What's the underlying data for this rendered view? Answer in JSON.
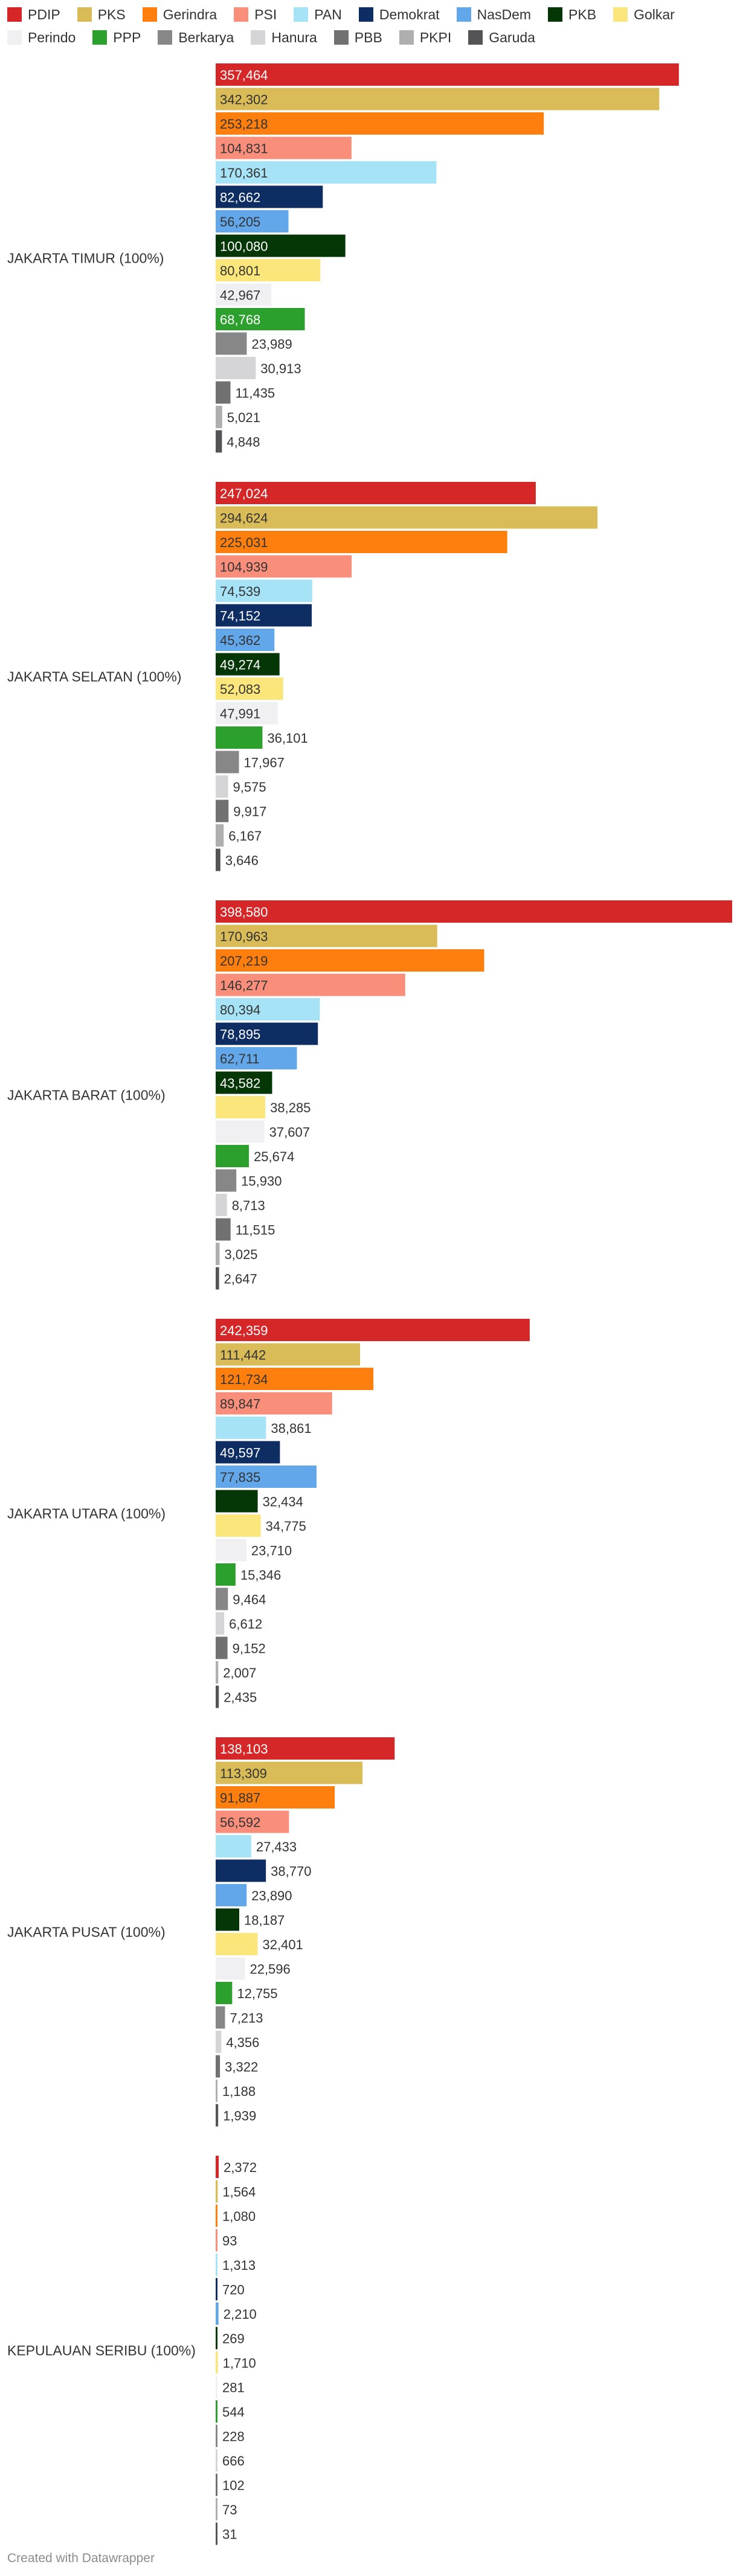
{
  "chart_data": {
    "type": "bar",
    "orientation": "horizontal",
    "legend_position": "top-left",
    "grid": false,
    "series": [
      {
        "name": "PDIP",
        "color": "#d62728"
      },
      {
        "name": "PKS",
        "color": "#d9bc58"
      },
      {
        "name": "Gerindra",
        "color": "#ff7f0e"
      },
      {
        "name": "PSI",
        "color": "#f98f7b"
      },
      {
        "name": "PAN",
        "color": "#a6e3f7"
      },
      {
        "name": "Demokrat",
        "color": "#0d2d63"
      },
      {
        "name": "NasDem",
        "color": "#63a7eb"
      },
      {
        "name": "PKB",
        "color": "#053605"
      },
      {
        "name": "Golkar",
        "color": "#fbe67c"
      },
      {
        "name": "Perindo",
        "color": "#f0f0f3"
      },
      {
        "name": "PPP",
        "color": "#2ca02c"
      },
      {
        "name": "Berkarya",
        "color": "#878787"
      },
      {
        "name": "Hanura",
        "color": "#d5d5d8"
      },
      {
        "name": "PBB",
        "color": "#717171"
      },
      {
        "name": "PKPI",
        "color": "#afafaf"
      },
      {
        "name": "Garuda",
        "color": "#545457"
      }
    ],
    "regions": [
      {
        "label": "JAKARTA TIMUR (100%)",
        "values": [
          357464,
          342302,
          253218,
          104831,
          170361,
          82662,
          56205,
          100080,
          80801,
          42967,
          68768,
          23989,
          30913,
          11435,
          5021,
          4848
        ]
      },
      {
        "label": "JAKARTA SELATAN (100%)",
        "values": [
          247024,
          294624,
          225031,
          104939,
          74539,
          74152,
          45362,
          49274,
          52083,
          47991,
          36101,
          17967,
          9575,
          9917,
          6167,
          3646
        ]
      },
      {
        "label": "JAKARTA BARAT (100%)",
        "values": [
          398580,
          170963,
          207219,
          146277,
          80394,
          78895,
          62711,
          43582,
          38285,
          37607,
          25674,
          15930,
          8713,
          11515,
          3025,
          2647
        ]
      },
      {
        "label": "JAKARTA UTARA (100%)",
        "values": [
          242359,
          111442,
          121734,
          89847,
          38861,
          49597,
          77835,
          32434,
          34775,
          23710,
          15346,
          9464,
          6612,
          9152,
          2007,
          2435
        ]
      },
      {
        "label": "JAKARTA PUSAT (100%)",
        "values": [
          138103,
          113309,
          91887,
          56592,
          27433,
          38770,
          23890,
          18187,
          32401,
          22596,
          12755,
          7213,
          4356,
          3322,
          1188,
          1939
        ]
      },
      {
        "label": "KEPULAUAN SERIBU (100%)",
        "values": [
          2372,
          1564,
          1080,
          93,
          1313,
          720,
          2210,
          269,
          1710,
          281,
          544,
          228,
          666,
          102,
          73,
          31
        ]
      }
    ],
    "xlim": [
      0,
      398580
    ]
  },
  "footer": {
    "credit": "Created with Datawrapper"
  }
}
